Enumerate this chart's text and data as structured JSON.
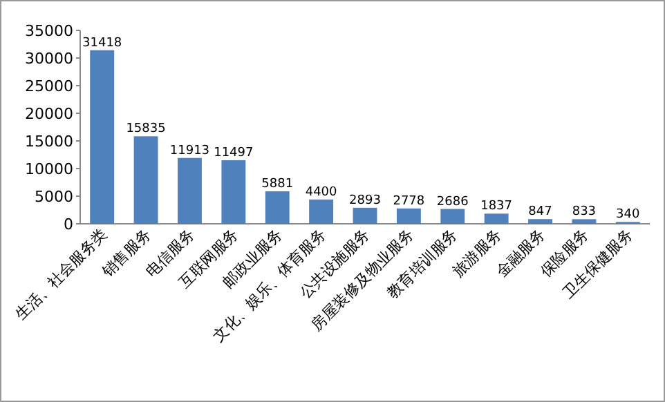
{
  "chart_data": {
    "type": "bar",
    "categories": [
      "生活、社会服务类",
      "销售服务",
      "电信服务",
      "互联网服务",
      "邮政业服务",
      "文化、娱乐、体育服务",
      "公共设施服务",
      "房屋装修及物业服务",
      "教育培训服务",
      "旅游服务",
      "金融服务",
      "保险服务",
      "卫生保健服务"
    ],
    "values": [
      31418,
      15835,
      11913,
      11497,
      5881,
      4400,
      2893,
      2778,
      2686,
      1837,
      847,
      833,
      340
    ],
    "color": "#4f81bd",
    "ylim": [
      0,
      35000
    ],
    "yticks": [
      0,
      5000,
      10000,
      15000,
      20000,
      25000,
      30000,
      35000
    ],
    "data_labels": true,
    "grid": false
  }
}
